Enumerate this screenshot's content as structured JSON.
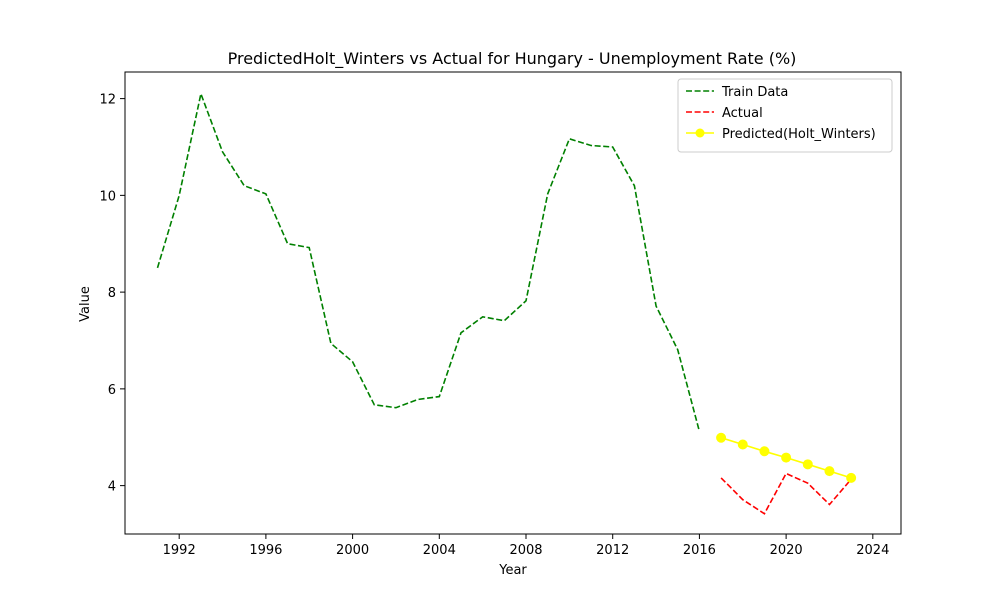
{
  "chart_data": {
    "type": "line",
    "title": "PredictedHolt_Winters vs Actual for Hungary - Unemployment Rate (%)",
    "xlabel": "Year",
    "ylabel": "Value",
    "xlim": [
      1989.5,
      2025.3
    ],
    "ylim": [
      3.0,
      12.55
    ],
    "xticks": [
      1992,
      1996,
      2000,
      2004,
      2008,
      2012,
      2016,
      2020,
      2024
    ],
    "yticks": [
      4,
      6,
      8,
      10,
      12
    ],
    "grid": false,
    "legend_position": "top-right",
    "series": [
      {
        "name": "Train Data",
        "color": "#008000",
        "style": "dashed",
        "marker": "none",
        "x": [
          1991,
          1992,
          1993,
          1994,
          1995,
          1996,
          1997,
          1998,
          1999,
          2000,
          2001,
          2002,
          2003,
          2004,
          2005,
          2006,
          2007,
          2008,
          2009,
          2010,
          2011,
          2012,
          2013,
          2014,
          2015,
          2016
        ],
        "y": [
          8.5,
          10.0,
          12.1,
          10.9,
          10.2,
          10.03,
          9.0,
          8.92,
          6.94,
          6.56,
          5.67,
          5.61,
          5.78,
          5.84,
          7.16,
          7.49,
          7.41,
          7.82,
          10.03,
          11.17,
          11.03,
          11.0,
          10.2,
          7.71,
          6.81,
          5.12
        ]
      },
      {
        "name": "Actual",
        "color": "#ff0000",
        "style": "dashed",
        "marker": "none",
        "x": [
          2017,
          2018,
          2019,
          2020,
          2021,
          2022,
          2023
        ],
        "y": [
          4.16,
          3.71,
          3.42,
          4.25,
          4.05,
          3.61,
          4.13
        ]
      },
      {
        "name": "Predicted(Holt_Winters)",
        "color": "#ffff00",
        "style": "solid",
        "marker": "circle",
        "x": [
          2017,
          2018,
          2019,
          2020,
          2021,
          2022,
          2023
        ],
        "y": [
          4.99,
          4.85,
          4.71,
          4.58,
          4.44,
          4.3,
          4.16
        ]
      }
    ]
  }
}
